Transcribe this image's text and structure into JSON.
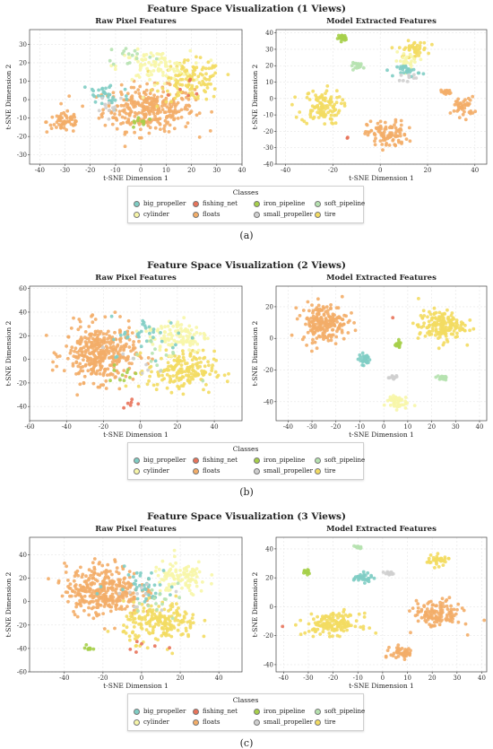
{
  "legend": {
    "title": "Classes",
    "colors": {
      "big_propeller": "#7fcdc4",
      "cylinder": "#f7f6a8",
      "fishing_net": "#e8735a",
      "floats": "#f3ad68",
      "iron_pipeline": "#a6cf4a",
      "small_propeller": "#cfcfcf",
      "soft_pipeline": "#b6e2b0",
      "tire": "#f3dc62"
    },
    "items_row1": [
      "big_propeller",
      "fishing_net",
      "iron_pipeline",
      "soft_pipeline"
    ],
    "items_row2": [
      "cylinder",
      "floats",
      "small_propeller",
      "tire"
    ]
  },
  "panels": [
    {
      "title": "Feature Space Visualization (1 Views)",
      "caption": "(a)",
      "chart_data": [
        {
          "type": "scatter",
          "title": "Raw Pixel Features",
          "xlabel": "t-SNE Dimension 1",
          "ylabel": "t-SNE Dimension 2",
          "xlim": [
            -44,
            40
          ],
          "ylim": [
            -35,
            38
          ],
          "xticks": [
            -40,
            -30,
            -20,
            -10,
            0,
            10,
            20,
            30,
            40
          ],
          "yticks": [
            -30,
            -20,
            -10,
            0,
            10,
            20,
            30
          ],
          "grid": true,
          "clusters": [
            {
              "class": "floats",
              "cx": 3,
              "cy": -5,
              "sx": 15,
              "sy": 10,
              "n": 320
            },
            {
              "class": "floats",
              "cx": -30,
              "cy": -12,
              "sx": 6,
              "sy": 5,
              "n": 60
            },
            {
              "class": "tire",
              "cx": 20,
              "cy": 10,
              "sx": 10,
              "sy": 9,
              "n": 130
            },
            {
              "class": "cylinder",
              "cx": 5,
              "cy": 18,
              "sx": 12,
              "sy": 7,
              "n": 90
            },
            {
              "class": "big_propeller",
              "cx": -14,
              "cy": 2,
              "sx": 8,
              "sy": 7,
              "n": 35
            },
            {
              "class": "soft_pipeline",
              "cx": -4,
              "cy": 24,
              "sx": 8,
              "sy": 5,
              "n": 15
            },
            {
              "class": "small_propeller",
              "cx": -12,
              "cy": -2,
              "sx": 6,
              "sy": 5,
              "n": 12
            },
            {
              "class": "iron_pipeline",
              "cx": 0,
              "cy": -12,
              "sx": 4,
              "sy": 3,
              "n": 10
            },
            {
              "class": "fishing_net",
              "cx": 20,
              "cy": 2,
              "sx": 8,
              "sy": 8,
              "n": 6
            }
          ]
        },
        {
          "type": "scatter",
          "title": "Model Extracted Features",
          "xlabel": "t-SNE Dimension 1",
          "ylabel": "t-SNE Dimension 2",
          "xlim": [
            -44,
            45
          ],
          "ylim": [
            -40,
            42
          ],
          "xticks": [
            -40,
            -20,
            0,
            20,
            40
          ],
          "yticks": [
            -40,
            -30,
            -20,
            -10,
            0,
            10,
            20,
            30,
            40
          ],
          "grid": true,
          "clusters": [
            {
              "class": "tire",
              "cx": -25,
              "cy": -5,
              "sx": 7,
              "sy": 9,
              "n": 110
            },
            {
              "class": "floats",
              "cx": 3,
              "cy": -22,
              "sx": 7,
              "sy": 7,
              "n": 100
            },
            {
              "class": "floats",
              "cx": 35,
              "cy": -5,
              "sx": 4,
              "sy": 5,
              "n": 45
            },
            {
              "class": "floats",
              "cx": 28,
              "cy": 4,
              "sx": 2,
              "sy": 1.5,
              "n": 15
            },
            {
              "class": "tire",
              "cx": 14,
              "cy": 30,
              "sx": 5,
              "sy": 4,
              "n": 45
            },
            {
              "class": "cylinder",
              "cx": 12,
              "cy": 23,
              "sx": 5,
              "sy": 4,
              "n": 25
            },
            {
              "class": "iron_pipeline",
              "cx": -16,
              "cy": 37,
              "sx": 1.5,
              "sy": 1.5,
              "n": 25
            },
            {
              "class": "soft_pipeline",
              "cx": -9,
              "cy": 20,
              "sx": 3,
              "sy": 1.5,
              "n": 20
            },
            {
              "class": "big_propeller",
              "cx": 12,
              "cy": 17,
              "sx": 4,
              "sy": 3,
              "n": 25
            },
            {
              "class": "small_propeller",
              "cx": 12,
              "cy": 13,
              "sx": 3,
              "sy": 2,
              "n": 10
            },
            {
              "class": "fishing_net",
              "cx": -14,
              "cy": -24,
              "sx": 0.6,
              "sy": 0.6,
              "n": 2
            }
          ]
        }
      ]
    },
    {
      "title": "Feature Space Visualization (2 Views)",
      "caption": "(b)",
      "chart_data": [
        {
          "type": "scatter",
          "title": "Raw Pixel Features",
          "xlabel": "t-SNE Dimension 1",
          "ylabel": "t-SNE Dimension 2",
          "xlim": [
            -60,
            55
          ],
          "ylim": [
            -52,
            62
          ],
          "xticks": [
            -60,
            -40,
            -20,
            0,
            20,
            40
          ],
          "yticks": [
            -40,
            -20,
            0,
            20,
            40,
            60
          ],
          "grid": true,
          "clusters": [
            {
              "class": "floats",
              "cx": -22,
              "cy": 5,
              "sx": 16,
              "sy": 20,
              "n": 360
            },
            {
              "class": "tire",
              "cx": 22,
              "cy": -10,
              "sx": 15,
              "sy": 14,
              "n": 180
            },
            {
              "class": "cylinder",
              "cx": 20,
              "cy": 20,
              "sx": 14,
              "sy": 12,
              "n": 110
            },
            {
              "class": "big_propeller",
              "cx": 5,
              "cy": 20,
              "sx": 18,
              "sy": 14,
              "n": 35
            },
            {
              "class": "soft_pipeline",
              "cx": 10,
              "cy": 0,
              "sx": 14,
              "sy": 14,
              "n": 12
            },
            {
              "class": "small_propeller",
              "cx": 0,
              "cy": -5,
              "sx": 10,
              "sy": 12,
              "n": 8
            },
            {
              "class": "iron_pipeline",
              "cx": -10,
              "cy": -10,
              "sx": 8,
              "sy": 8,
              "n": 10
            },
            {
              "class": "fishing_net",
              "cx": -5,
              "cy": -38,
              "sx": 6,
              "sy": 4,
              "n": 6
            }
          ]
        },
        {
          "type": "scatter",
          "title": "Model Extracted Features",
          "xlabel": "t-SNE Dimension 1",
          "ylabel": "t-SNE Dimension 2",
          "xlim": [
            -45,
            43
          ],
          "ylim": [
            -52,
            33
          ],
          "xticks": [
            -40,
            -30,
            -20,
            -10,
            0,
            10,
            20,
            30,
            40
          ],
          "yticks": [
            -40,
            -20,
            0,
            20
          ],
          "grid": true,
          "clusters": [
            {
              "class": "floats",
              "cx": -25,
              "cy": 10,
              "sx": 8,
              "sy": 10,
              "n": 200
            },
            {
              "class": "tire",
              "cx": 24,
              "cy": 8,
              "sx": 8,
              "sy": 8,
              "n": 170
            },
            {
              "class": "cylinder",
              "cx": 5,
              "cy": -40,
              "sx": 4,
              "sy": 4,
              "n": 45
            },
            {
              "class": "big_propeller",
              "cx": -8,
              "cy": -13,
              "sx": 2,
              "sy": 3,
              "n": 30
            },
            {
              "class": "iron_pipeline",
              "cx": 6,
              "cy": -4,
              "sx": 1.2,
              "sy": 1.5,
              "n": 20
            },
            {
              "class": "soft_pipeline",
              "cx": 24,
              "cy": -25,
              "sx": 2,
              "sy": 1.2,
              "n": 20
            },
            {
              "class": "small_propeller",
              "cx": 4,
              "cy": -25,
              "sx": 2,
              "sy": 1.2,
              "n": 15
            },
            {
              "class": "fishing_net",
              "cx": 4,
              "cy": 13,
              "sx": 0.5,
              "sy": 0.5,
              "n": 1
            }
          ]
        }
      ]
    },
    {
      "title": "Feature Space Visualization (3 Views)",
      "caption": "(c)",
      "chart_data": [
        {
          "type": "scatter",
          "title": "Raw Pixel Features",
          "xlabel": "t-SNE Dimension 1",
          "ylabel": "t-SNE Dimension 2",
          "xlim": [
            -58,
            52
          ],
          "ylim": [
            -60,
            55
          ],
          "xticks": [
            -40,
            -20,
            0,
            20,
            40
          ],
          "yticks": [
            -60,
            -40,
            -20,
            0,
            20,
            40
          ],
          "grid": true,
          "clusters": [
            {
              "class": "floats",
              "cx": -20,
              "cy": 10,
              "sx": 16,
              "sy": 18,
              "n": 340
            },
            {
              "class": "tire",
              "cx": 10,
              "cy": -18,
              "sx": 16,
              "sy": 14,
              "n": 200
            },
            {
              "class": "cylinder",
              "cx": 20,
              "cy": 20,
              "sx": 12,
              "sy": 12,
              "n": 100
            },
            {
              "class": "big_propeller",
              "cx": 0,
              "cy": 15,
              "sx": 14,
              "sy": 12,
              "n": 40
            },
            {
              "class": "soft_pipeline",
              "cx": 10,
              "cy": 5,
              "sx": 14,
              "sy": 14,
              "n": 14
            },
            {
              "class": "small_propeller",
              "cx": 0,
              "cy": 5,
              "sx": 10,
              "sy": 10,
              "n": 10
            },
            {
              "class": "iron_pipeline",
              "cx": -28,
              "cy": -40,
              "sx": 2,
              "sy": 2,
              "n": 8
            },
            {
              "class": "fishing_net",
              "cx": 0,
              "cy": -38,
              "sx": 12,
              "sy": 4,
              "n": 6
            }
          ]
        },
        {
          "type": "scatter",
          "title": "Model Extracted Features",
          "xlabel": "t-SNE Dimension 1",
          "ylabel": "t-SNE Dimension 2",
          "xlim": [
            -43,
            42
          ],
          "ylim": [
            -45,
            48
          ],
          "xticks": [
            -40,
            -30,
            -20,
            -10,
            0,
            10,
            20,
            30,
            40
          ],
          "yticks": [
            -40,
            -20,
            0,
            20,
            40
          ],
          "grid": true,
          "clusters": [
            {
              "class": "tire",
              "cx": -20,
              "cy": -12,
              "sx": 9,
              "sy": 6,
              "n": 150
            },
            {
              "class": "floats",
              "cx": 22,
              "cy": -5,
              "sx": 8,
              "sy": 8,
              "n": 130
            },
            {
              "class": "floats",
              "cx": 8,
              "cy": -32,
              "sx": 4,
              "sy": 4,
              "n": 50
            },
            {
              "class": "tire",
              "cx": 22,
              "cy": 32,
              "sx": 4,
              "sy": 3,
              "n": 40
            },
            {
              "class": "big_propeller",
              "cx": -8,
              "cy": 20,
              "sx": 3,
              "sy": 2.5,
              "n": 35
            },
            {
              "class": "small_propeller",
              "cx": 3,
              "cy": 23,
              "sx": 2,
              "sy": 1.2,
              "n": 15
            },
            {
              "class": "soft_pipeline",
              "cx": -10,
              "cy": 41,
              "sx": 1.2,
              "sy": 1.2,
              "n": 15
            },
            {
              "class": "iron_pipeline",
              "cx": -31,
              "cy": 24,
              "sx": 1,
              "sy": 1.5,
              "n": 15
            },
            {
              "class": "fishing_net",
              "cx": -40,
              "cy": -14,
              "sx": 0.5,
              "sy": 0.5,
              "n": 1
            }
          ]
        }
      ]
    }
  ]
}
